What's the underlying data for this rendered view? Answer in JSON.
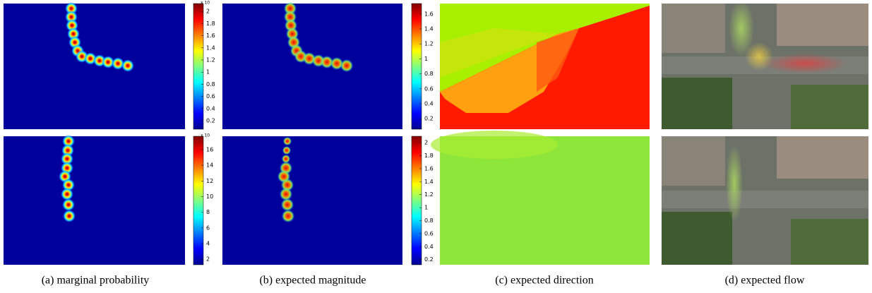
{
  "panels": [
    {
      "caption": "(a) marginal probability",
      "colorbars": [
        {
          "multiplier": "x 10",
          "lim": [
            0.06,
            2.13
          ],
          "ticks": [
            0.2,
            0.4,
            0.6,
            0.8,
            1,
            1.2,
            1.4,
            1.6,
            1.8,
            2
          ]
        },
        {
          "multiplier": "x 10",
          "lim": [
            1.3,
            17.7
          ],
          "ticks": [
            2,
            4,
            6,
            8,
            10,
            12,
            14,
            16
          ]
        }
      ]
    },
    {
      "caption": "(b) expected magnitude",
      "colorbars": [
        {
          "lim": [
            0.06,
            1.74
          ],
          "ticks": [
            0.2,
            0.4,
            0.6,
            0.8,
            1,
            1.2,
            1.4,
            1.6
          ]
        },
        {
          "lim": [
            0.12,
            2.1
          ],
          "ticks": [
            0.2,
            0.4,
            0.6,
            0.8,
            1,
            1.2,
            1.4,
            1.6,
            1.8,
            2
          ]
        }
      ]
    },
    {
      "caption": "(c) expected direction"
    },
    {
      "caption": "(d) expected flow"
    }
  ]
}
